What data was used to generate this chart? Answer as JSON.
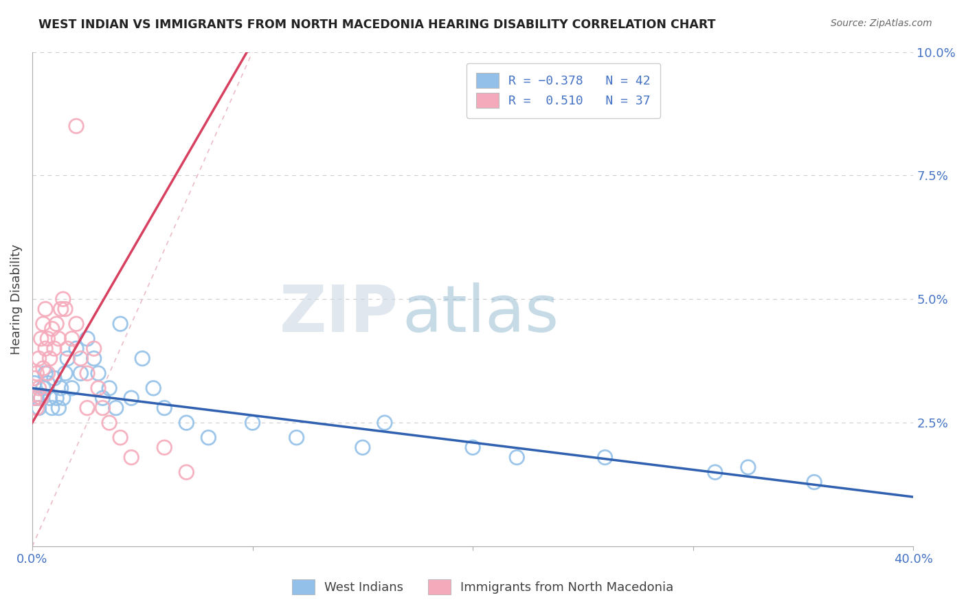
{
  "title": "WEST INDIAN VS IMMIGRANTS FROM NORTH MACEDONIA HEARING DISABILITY CORRELATION CHART",
  "source": "Source: ZipAtlas.com",
  "ylabel": "Hearing Disability",
  "x_min": 0.0,
  "x_max": 0.4,
  "y_min": 0.0,
  "y_max": 0.1,
  "series1_color": "#92c0e8",
  "series2_color": "#f5aabb",
  "line1_color": "#3060b0",
  "line2_color": "#d84060",
  "diag_color": "#e8b0bc",
  "watermark_zip": "ZIP",
  "watermark_atlas": "atlas",
  "watermark_color_zip": "#c8d5e2",
  "watermark_color_atlas": "#90b8d0",
  "blue_points_x": [
    0.001,
    0.002,
    0.003,
    0.004,
    0.005,
    0.006,
    0.007,
    0.008,
    0.009,
    0.01,
    0.011,
    0.012,
    0.013,
    0.014,
    0.015,
    0.016,
    0.018,
    0.02,
    0.022,
    0.025,
    0.028,
    0.03,
    0.032,
    0.035,
    0.038,
    0.04,
    0.045,
    0.05,
    0.055,
    0.06,
    0.07,
    0.08,
    0.1,
    0.12,
    0.15,
    0.16,
    0.2,
    0.22,
    0.26,
    0.31,
    0.325,
    0.355
  ],
  "blue_points_y": [
    0.033,
    0.03,
    0.028,
    0.03,
    0.032,
    0.035,
    0.033,
    0.03,
    0.028,
    0.034,
    0.03,
    0.028,
    0.032,
    0.03,
    0.035,
    0.038,
    0.032,
    0.04,
    0.035,
    0.042,
    0.038,
    0.035,
    0.03,
    0.032,
    0.028,
    0.045,
    0.03,
    0.038,
    0.032,
    0.028,
    0.025,
    0.022,
    0.025,
    0.022,
    0.02,
    0.025,
    0.02,
    0.018,
    0.018,
    0.015,
    0.016,
    0.013
  ],
  "pink_points_x": [
    0.001,
    0.001,
    0.002,
    0.002,
    0.003,
    0.003,
    0.004,
    0.004,
    0.005,
    0.005,
    0.006,
    0.006,
    0.007,
    0.007,
    0.008,
    0.009,
    0.01,
    0.011,
    0.012,
    0.013,
    0.014,
    0.015,
    0.016,
    0.018,
    0.02,
    0.022,
    0.025,
    0.028,
    0.03,
    0.032,
    0.035,
    0.04,
    0.045,
    0.06,
    0.07,
    0.02,
    0.025
  ],
  "pink_points_y": [
    0.03,
    0.034,
    0.028,
    0.035,
    0.032,
    0.038,
    0.03,
    0.042,
    0.036,
    0.045,
    0.04,
    0.048,
    0.035,
    0.042,
    0.038,
    0.044,
    0.04,
    0.045,
    0.042,
    0.048,
    0.05,
    0.048,
    0.04,
    0.042,
    0.045,
    0.038,
    0.035,
    0.04,
    0.032,
    0.028,
    0.025,
    0.022,
    0.018,
    0.02,
    0.015,
    0.085,
    0.028
  ],
  "legend_labels": [
    "West Indians",
    "Immigrants from North Macedonia"
  ],
  "legend_r1": "R = -0.378",
  "legend_n1": "N = 42",
  "legend_r2": "R =  0.510",
  "legend_n2": "N = 37"
}
